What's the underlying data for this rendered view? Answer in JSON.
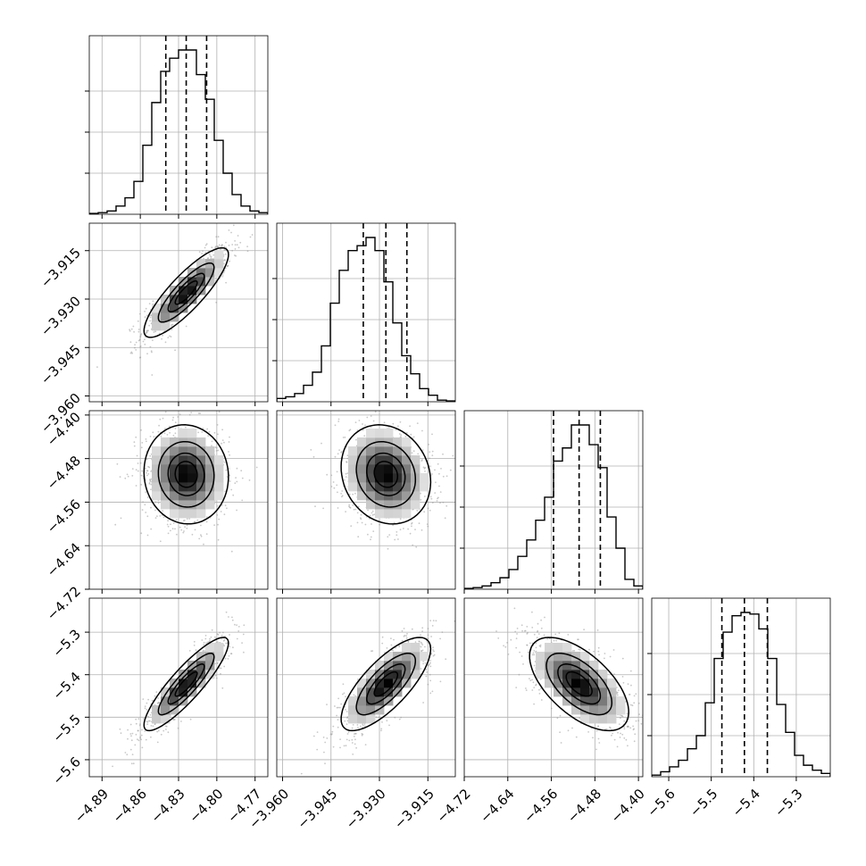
{
  "chart_data": {
    "type": "corner",
    "title": "",
    "params": [
      {
        "ticks": [
          -4.89,
          -4.86,
          -4.83,
          -4.8,
          -4.77
        ],
        "tick_labels": [
          "−4.89",
          "−4.86",
          "−4.83",
          "−4.80",
          "−4.77"
        ],
        "range": [
          -4.9,
          -4.76
        ],
        "median": -4.824,
        "q16": -4.84,
        "q84": -4.808,
        "sigma": 0.016
      },
      {
        "ticks": [
          -3.96,
          -3.945,
          -3.93,
          -3.915
        ],
        "tick_labels": [
          "−3.960",
          "−3.945",
          "−3.930",
          "−3.915"
        ],
        "range": [
          -3.9618,
          -3.9065
        ],
        "median": -3.928,
        "q16": -3.935,
        "q84": -3.9215,
        "sigma": 0.0067
      },
      {
        "ticks": [
          -4.72,
          -4.64,
          -4.56,
          -4.48,
          -4.4
        ],
        "tick_labels": [
          "−4.72",
          "−4.64",
          "−4.56",
          "−4.48",
          "−4.40"
        ],
        "range": [
          -4.72,
          -4.392
        ],
        "median": -4.509,
        "q16": -4.556,
        "q84": -4.47,
        "sigma": 0.044
      },
      {
        "ticks": [
          -5.6,
          -5.5,
          -5.4,
          -5.3
        ],
        "tick_labels": [
          "−5.6",
          "−5.5",
          "−5.4",
          "−5.3"
        ],
        "range": [
          -5.64,
          -5.22
        ],
        "median": -5.422,
        "q16": -5.475,
        "q84": -5.368,
        "sigma": 0.053
      }
    ],
    "correlations": [
      [
        1,
        0.85,
        -0.05,
        0.88
      ],
      [
        0.85,
        1,
        -0.15,
        0.75
      ],
      [
        -0.05,
        -0.15,
        1,
        -0.6
      ],
      [
        0.88,
        0.75,
        -0.6,
        1
      ]
    ],
    "histograms": [
      [
        0.005,
        0.01,
        0.02,
        0.05,
        0.1,
        0.2,
        0.42,
        0.68,
        0.87,
        0.95,
        1.0,
        1.0,
        0.85,
        0.7,
        0.45,
        0.25,
        0.12,
        0.05,
        0.02,
        0.01
      ],
      [
        0.02,
        0.03,
        0.05,
        0.1,
        0.18,
        0.34,
        0.6,
        0.8,
        0.92,
        0.95,
        1.0,
        0.92,
        0.73,
        0.48,
        0.28,
        0.17,
        0.08,
        0.04,
        0.01,
        0.005
      ],
      [
        0.005,
        0.01,
        0.02,
        0.04,
        0.07,
        0.12,
        0.2,
        0.3,
        0.42,
        0.56,
        0.78,
        0.86,
        1.0,
        1.0,
        0.88,
        0.74,
        0.44,
        0.25,
        0.06,
        0.02
      ],
      [
        0.01,
        0.03,
        0.06,
        0.1,
        0.17,
        0.25,
        0.45,
        0.72,
        0.88,
        0.98,
        1.0,
        0.99,
        0.9,
        0.72,
        0.44,
        0.27,
        0.13,
        0.07,
        0.04,
        0.02
      ]
    ],
    "contour_levels_sigma": [
      0.5,
      1.0,
      1.5,
      2.0
    ],
    "grid": true
  }
}
